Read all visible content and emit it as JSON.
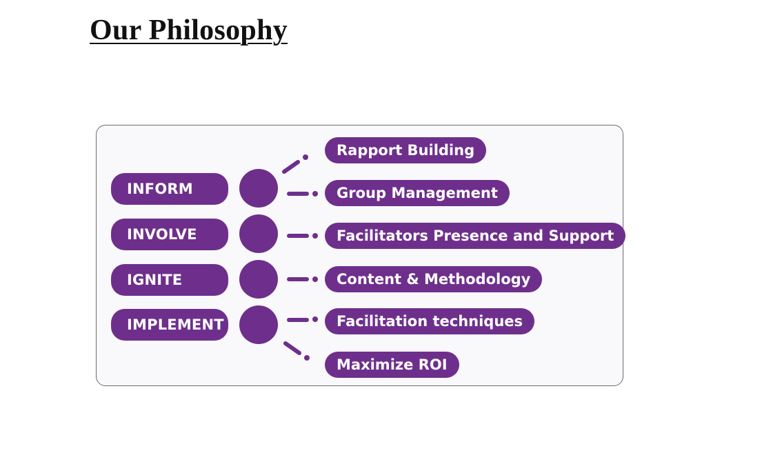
{
  "page": {
    "title": "Our Philosophy"
  },
  "diagram": {
    "stages": [
      {
        "label": "INFORM"
      },
      {
        "label": "INVOLVE"
      },
      {
        "label": "IGNITE"
      },
      {
        "label": "IMPLEMENT"
      }
    ],
    "outcomes": [
      {
        "label": "Rapport Building"
      },
      {
        "label": "Group Management"
      },
      {
        "label": "Facilitators Presence and Support"
      },
      {
        "label": "Content & Methodology"
      },
      {
        "label": "Facilitation techniques"
      },
      {
        "label": "Maximize ROI"
      }
    ]
  },
  "colors": {
    "accent": "#6e2f8c",
    "panel_border": "#6b6b6b",
    "panel_background": "#f9f8fb"
  }
}
